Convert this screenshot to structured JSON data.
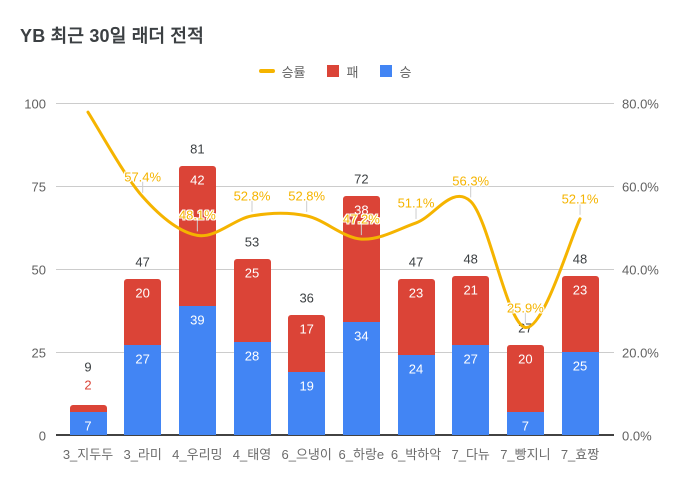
{
  "title": "YB 최근 30일 래더 전적",
  "legend": [
    {
      "label": "승률",
      "swatch": "line-swatch-icon",
      "type": "line",
      "color": "#F5B400"
    },
    {
      "label": "패",
      "swatch": "square-swatch-icon",
      "type": "square",
      "color": "#DB4437"
    },
    {
      "label": "승",
      "swatch": "square-swatch-icon",
      "type": "square",
      "color": "#4285F4"
    }
  ],
  "colors": {
    "wins_bar": "#4285F4",
    "losses_bar": "#DB4437",
    "winrate_line": "#F5B400",
    "gridline": "#cccccc",
    "axis_line": "#424242",
    "axis_text": "#616161",
    "total_text": "#3c4043",
    "stem": "#cdcdcd"
  },
  "chart_data": {
    "type": "bar",
    "subtype": "stacked-combo",
    "title": "YB 최근 30일 래더 전적",
    "categories": [
      "3_지두두",
      "3_라미",
      "4_우리밍",
      "4_태영",
      "6_으냉이",
      "6_하랑e",
      "6_박하악",
      "7_다뉴",
      "7_빵지니",
      "7_효짱"
    ],
    "series": [
      {
        "name": "승",
        "type": "bar",
        "stack": "games",
        "color": "#4285F4",
        "values": [
          7,
          27,
          39,
          28,
          19,
          34,
          24,
          27,
          7,
          25
        ]
      },
      {
        "name": "패",
        "type": "bar",
        "stack": "games",
        "color": "#DB4437",
        "values": [
          2,
          20,
          42,
          25,
          17,
          38,
          23,
          21,
          20,
          23
        ]
      },
      {
        "name": "승률",
        "type": "line",
        "axis": "right",
        "color": "#F5B400",
        "values": [
          77.8,
          57.4,
          48.1,
          52.8,
          52.8,
          47.2,
          51.1,
          56.3,
          25.9,
          52.1
        ],
        "point_labels": [
          "",
          "57.4%",
          "48.1%",
          "52.8%",
          "52.8%",
          "47.2%",
          "51.1%",
          "56.3%",
          "25.9%",
          "52.1%"
        ]
      }
    ],
    "totals": [
      9,
      47,
      81,
      53,
      36,
      72,
      47,
      48,
      27,
      48
    ],
    "left_axis": {
      "ticks": [
        "100",
        "75",
        "50",
        "25",
        "0"
      ],
      "min": 0,
      "max": 100
    },
    "right_axis": {
      "ticks": [
        "80.0%",
        "60.0%",
        "40.0%",
        "20.0%",
        "0.0%"
      ],
      "min": 0,
      "max": 80
    },
    "grid": true,
    "legend_position": "top"
  }
}
